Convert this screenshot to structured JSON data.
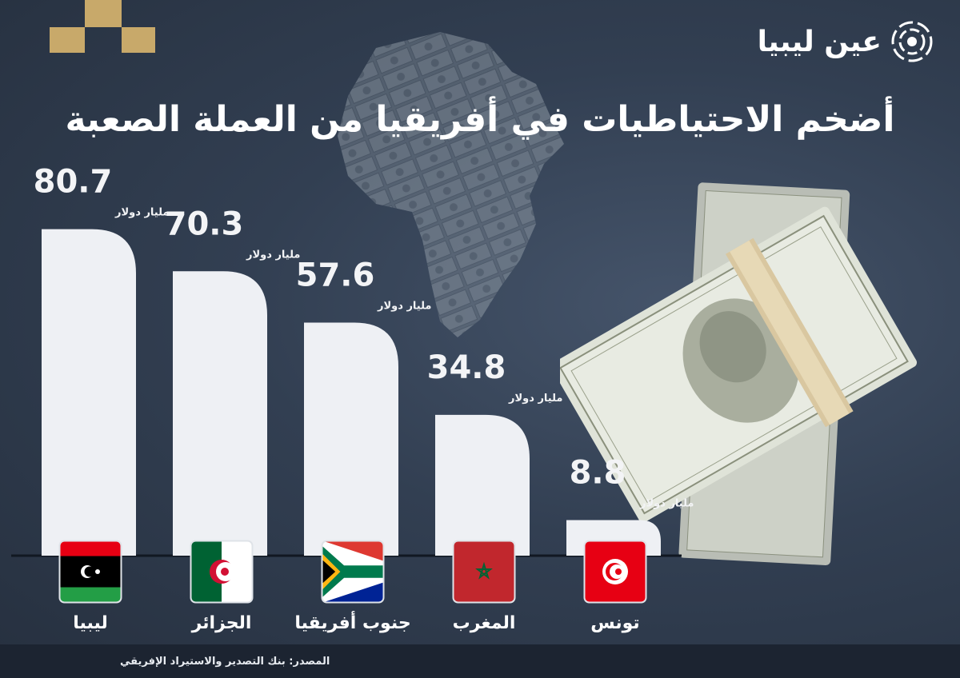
{
  "title": "أضخم الاحتياطيات في أفريقيا من العملة الصعبة",
  "brand": {
    "name": "عين ليبيا",
    "icon": "eye-swirl-icon"
  },
  "source": "المصدر: بنك التصدير والاستيراد الإفريقي",
  "colors": {
    "background": "#2e3a4b",
    "bar": "#eef0f4",
    "text": "#ffffff",
    "accent": "#c8a96a"
  },
  "chart_data": {
    "type": "bar",
    "title": "أضخم الاحتياطيات في أفريقيا من العملة الصعبة",
    "categories": [
      "ليبيا",
      "الجزائر",
      "جنوب أفريقيا",
      "المغرب",
      "تونس"
    ],
    "values": [
      80.7,
      70.3,
      57.6,
      34.8,
      8.8
    ],
    "value_labels": [
      "80.7",
      "70.3",
      "57.6",
      "34.8",
      "8.8"
    ],
    "unit": "مليار دولار",
    "flags": [
      "libya-flag-icon",
      "algeria-flag-icon",
      "south-africa-flag-icon",
      "morocco-flag-icon",
      "tunisia-flag-icon"
    ],
    "xlabel": "",
    "ylabel": "",
    "grid": false,
    "legend": "none"
  }
}
